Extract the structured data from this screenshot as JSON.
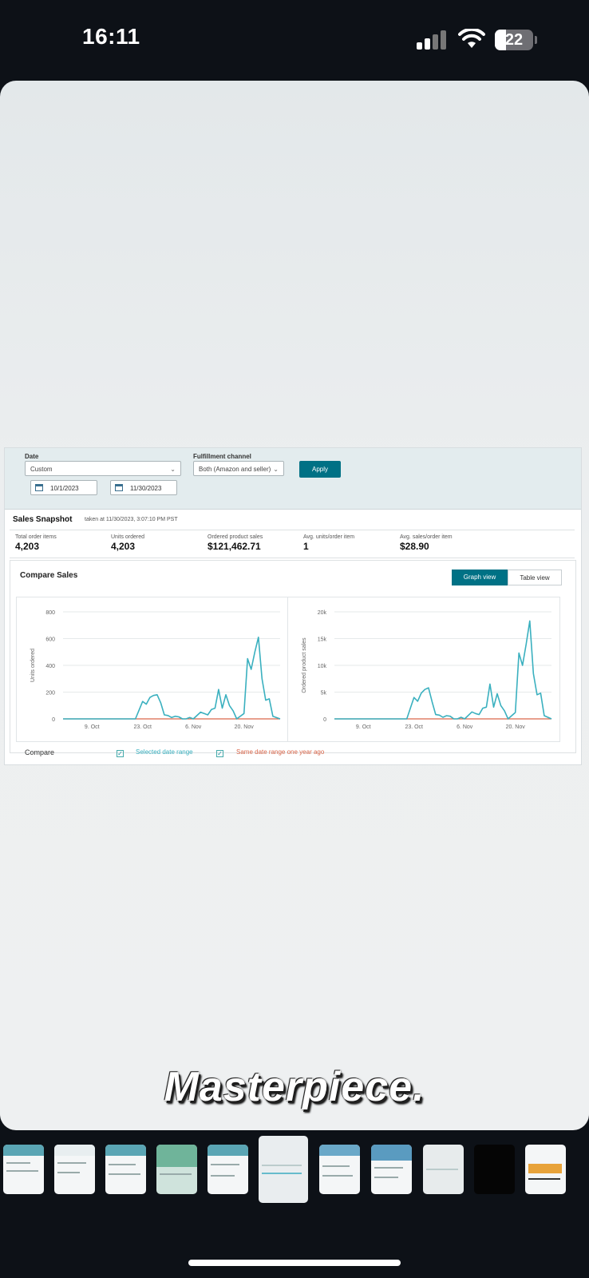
{
  "status_bar": {
    "time": "16:11",
    "battery": "22"
  },
  "filters": {
    "date_label": "Date",
    "date_value": "Custom",
    "fulfillment_label": "Fulfillment channel",
    "fulfillment_value": "Both (Amazon and seller)",
    "apply_label": "Apply",
    "start_date": "10/1/2023",
    "end_date": "11/30/2023"
  },
  "snapshot": {
    "title": "Sales Snapshot",
    "taken_at": "taken at 11/30/2023, 3:07:10 PM PST",
    "metrics": [
      {
        "label": "Total order items",
        "value": "4,203"
      },
      {
        "label": "Units ordered",
        "value": "4,203"
      },
      {
        "label": "Ordered product sales",
        "value": "$121,462.71"
      },
      {
        "label": "Avg. units/order item",
        "value": "1"
      },
      {
        "label": "Avg. sales/order item",
        "value": "$28.90"
      }
    ]
  },
  "compare": {
    "title": "Compare Sales",
    "graph_view": "Graph view",
    "table_view": "Table view",
    "compare_label": "Compare",
    "selected_range": "Selected date range",
    "year_ago_range": "Same date range one year ago"
  },
  "colors": {
    "accent": "#007185",
    "series_current": "#3ab0bf",
    "series_prior": "#d9664a"
  },
  "chart_data": [
    {
      "type": "line",
      "ylabel": "Units ordered",
      "ylim": [
        0,
        800
      ],
      "yticks": [
        "0",
        "200",
        "400",
        "600",
        "800"
      ],
      "xticks": [
        "9. Oct",
        "23. Oct",
        "6. Nov",
        "20. Nov"
      ],
      "x_range": [
        "2023-10-01",
        "2023-11-30"
      ],
      "series": [
        {
          "name": "Selected date range",
          "x": [
            "2023-10-01",
            "2023-10-21",
            "2023-10-23",
            "2023-10-24",
            "2023-10-25",
            "2023-10-26",
            "2023-10-27",
            "2023-10-28",
            "2023-10-29",
            "2023-10-30",
            "2023-10-31",
            "2023-11-01",
            "2023-11-02",
            "2023-11-03",
            "2023-11-04",
            "2023-11-05",
            "2023-11-06",
            "2023-11-08",
            "2023-11-09",
            "2023-11-10",
            "2023-11-11",
            "2023-11-12",
            "2023-11-13",
            "2023-11-14",
            "2023-11-15",
            "2023-11-16",
            "2023-11-17",
            "2023-11-18",
            "2023-11-20",
            "2023-11-21",
            "2023-11-22",
            "2023-11-23",
            "2023-11-24",
            "2023-11-25",
            "2023-11-26",
            "2023-11-27",
            "2023-11-28",
            "2023-11-30"
          ],
          "values": [
            0,
            0,
            130,
            110,
            160,
            175,
            180,
            120,
            30,
            25,
            10,
            20,
            15,
            0,
            0,
            10,
            0,
            50,
            40,
            30,
            70,
            80,
            220,
            80,
            180,
            100,
            60,
            0,
            40,
            450,
            370,
            500,
            610,
            300,
            140,
            150,
            20,
            0
          ]
        },
        {
          "name": "Same date range one year ago",
          "x": [
            "2023-10-01",
            "2023-11-30"
          ],
          "values": [
            0,
            0
          ]
        }
      ]
    },
    {
      "type": "line",
      "ylabel": "Ordered product sales",
      "ylim": [
        0,
        20000
      ],
      "yticks": [
        "0",
        "5k",
        "10k",
        "15k",
        "20k"
      ],
      "xticks": [
        "9. Oct",
        "23. Oct",
        "6. Nov",
        "20. Nov"
      ],
      "x_range": [
        "2023-10-01",
        "2023-11-30"
      ],
      "series": [
        {
          "name": "Selected date range",
          "x": [
            "2023-10-01",
            "2023-10-21",
            "2023-10-23",
            "2023-10-24",
            "2023-10-25",
            "2023-10-26",
            "2023-10-27",
            "2023-10-28",
            "2023-10-29",
            "2023-10-30",
            "2023-10-31",
            "2023-11-01",
            "2023-11-02",
            "2023-11-03",
            "2023-11-04",
            "2023-11-05",
            "2023-11-06",
            "2023-11-08",
            "2023-11-09",
            "2023-11-10",
            "2023-11-11",
            "2023-11-12",
            "2023-11-13",
            "2023-11-14",
            "2023-11-15",
            "2023-11-16",
            "2023-11-17",
            "2023-11-18",
            "2023-11-20",
            "2023-11-21",
            "2023-11-22",
            "2023-11-23",
            "2023-11-24",
            "2023-11-25",
            "2023-11-26",
            "2023-11-27",
            "2023-11-28",
            "2023-11-30"
          ],
          "values": [
            0,
            0,
            4000,
            3300,
            4800,
            5500,
            5800,
            3200,
            800,
            700,
            300,
            600,
            500,
            0,
            0,
            300,
            0,
            1300,
            1000,
            800,
            2000,
            2200,
            6500,
            2200,
            4700,
            2500,
            1500,
            0,
            1200,
            12300,
            10000,
            14000,
            18300,
            8500,
            4500,
            4800,
            600,
            0
          ]
        },
        {
          "name": "Same date range one year ago",
          "x": [
            "2023-10-01",
            "2023-11-30"
          ],
          "values": [
            0,
            0
          ]
        }
      ]
    }
  ],
  "caption": "Masterpiece."
}
